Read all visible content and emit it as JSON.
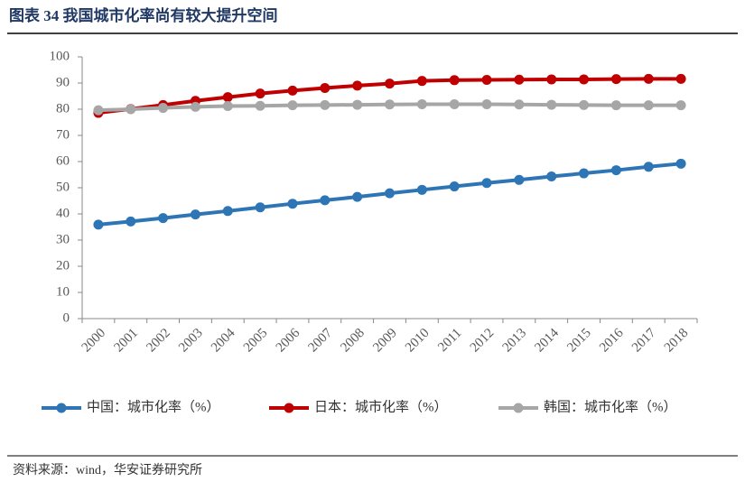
{
  "header": {
    "title": "图表 34 我国城市化率尚有较大提升空间"
  },
  "chart_data": {
    "type": "line",
    "categories": [
      "2000",
      "2001",
      "2002",
      "2003",
      "2004",
      "2005",
      "2006",
      "2007",
      "2008",
      "2009",
      "2010",
      "2011",
      "2012",
      "2013",
      "2014",
      "2015",
      "2016",
      "2017",
      "2018"
    ],
    "series": [
      {
        "name": "中国：城市化率（%）",
        "color": "#2e75b6",
        "values": [
          35.9,
          37.1,
          38.4,
          39.8,
          41.1,
          42.5,
          43.9,
          45.2,
          46.5,
          47.9,
          49.2,
          50.5,
          51.8,
          53.0,
          54.3,
          55.5,
          56.7,
          58.0,
          59.2
        ]
      },
      {
        "name": "日本：城市化率（%）",
        "color": "#c00000",
        "values": [
          78.6,
          80.1,
          81.6,
          83.2,
          84.6,
          86.0,
          87.1,
          88.1,
          89.0,
          89.8,
          90.8,
          91.1,
          91.2,
          91.3,
          91.4,
          91.4,
          91.5,
          91.6,
          91.6
        ]
      },
      {
        "name": "韩国：城市化率（%）",
        "color": "#a6a6a6",
        "values": [
          79.6,
          80.0,
          80.5,
          80.9,
          81.2,
          81.3,
          81.5,
          81.6,
          81.7,
          81.8,
          81.9,
          81.9,
          81.9,
          81.8,
          81.7,
          81.6,
          81.5,
          81.5,
          81.5
        ]
      }
    ],
    "ylim": [
      0,
      100
    ],
    "yticks": [
      0,
      10,
      20,
      30,
      40,
      50,
      60,
      70,
      80,
      90,
      100
    ],
    "grid": false,
    "legend": "bottom"
  },
  "footer": {
    "source": "资料来源：wind，华安证券研究所"
  }
}
